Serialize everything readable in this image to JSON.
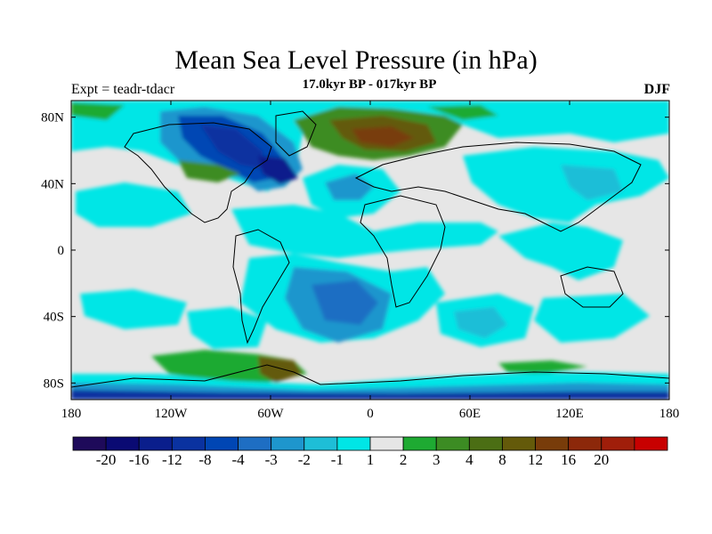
{
  "title": "Mean Sea Level Pressure (in hPa)",
  "subtitle_left": "Expt = teadr-tdacr",
  "subtitle_center": "17.0kyr BP - 017kyr BP",
  "subtitle_right": "DJF",
  "chart_data": {
    "type": "contour-map",
    "variable": "Mean Sea Level Pressure anomaly",
    "units": "hPa",
    "projection": "cylindrical-equidistant",
    "lon_range": [
      -180,
      180
    ],
    "lat_range": [
      -90,
      90
    ],
    "x_ticks": [
      {
        "value": -180,
        "label": "180"
      },
      {
        "value": -120,
        "label": "120W"
      },
      {
        "value": -60,
        "label": "60W"
      },
      {
        "value": 0,
        "label": "0"
      },
      {
        "value": 60,
        "label": "60E"
      },
      {
        "value": 120,
        "label": "120E"
      },
      {
        "value": 180,
        "label": "180"
      }
    ],
    "y_ticks": [
      {
        "value": 80,
        "label": "80N"
      },
      {
        "value": 40,
        "label": "40N"
      },
      {
        "value": 0,
        "label": "0"
      },
      {
        "value": -40,
        "label": "40S"
      },
      {
        "value": -80,
        "label": "80S"
      }
    ],
    "colorbar": {
      "levels": [
        "-20",
        "-16",
        "-12",
        "-8",
        "-4",
        "-3",
        "-2",
        "-1",
        "1",
        "2",
        "3",
        "4",
        "8",
        "12",
        "16",
        "20"
      ],
      "colors": [
        "#1e0a5a",
        "#0a0a73",
        "#0a1e8c",
        "#0a32a0",
        "#0046b4",
        "#1e6ec3",
        "#1e96cd",
        "#1ebed7",
        "#00e6e6",
        "#e6e6e6",
        "#1eaa32",
        "#3c8c23",
        "#4b6e14",
        "#645a0a",
        "#783c0a",
        "#8c280a",
        "#a01e0a",
        "#c80000"
      ]
    }
  }
}
